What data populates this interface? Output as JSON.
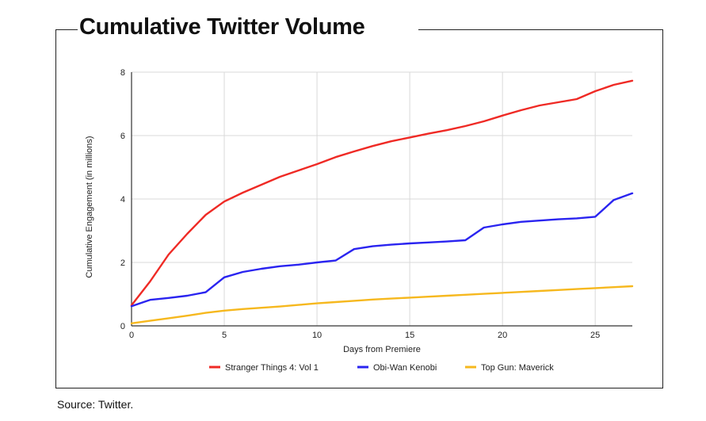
{
  "title": "Cumulative Twitter Volume",
  "source": "Source: Twitter.",
  "chart_data": {
    "type": "line",
    "xlabel": "Days from Premiere",
    "ylabel": "Cumulative Engagement (in millions)",
    "xlim": [
      0,
      27
    ],
    "ylim": [
      0,
      8
    ],
    "xticks": [
      0,
      5,
      10,
      15,
      20,
      25
    ],
    "yticks": [
      0,
      2,
      4,
      6,
      8
    ],
    "grid": true,
    "legend_position": "bottom",
    "x": [
      0,
      1,
      2,
      3,
      4,
      5,
      6,
      7,
      8,
      9,
      10,
      11,
      12,
      13,
      14,
      15,
      16,
      17,
      18,
      19,
      20,
      21,
      22,
      23,
      24,
      25,
      26,
      27
    ],
    "series": [
      {
        "name": "Stranger Things 4: Vol 1",
        "color": "#ef2a25",
        "values": [
          0.65,
          1.4,
          2.25,
          2.9,
          3.5,
          3.92,
          4.2,
          4.45,
          4.7,
          4.9,
          5.1,
          5.32,
          5.5,
          5.67,
          5.82,
          5.94,
          6.06,
          6.17,
          6.3,
          6.45,
          6.63,
          6.8,
          6.95,
          7.05,
          7.15,
          7.4,
          7.6,
          7.73
        ]
      },
      {
        "name": "Obi-Wan Kenobi",
        "color": "#2a24f0",
        "values": [
          0.62,
          0.82,
          0.88,
          0.95,
          1.06,
          1.53,
          1.7,
          1.8,
          1.88,
          1.93,
          2.0,
          2.06,
          2.42,
          2.51,
          2.56,
          2.6,
          2.63,
          2.66,
          2.7,
          3.1,
          3.2,
          3.28,
          3.32,
          3.36,
          3.39,
          3.44,
          3.97,
          4.18
        ]
      },
      {
        "name": "Top Gun: Maverick",
        "color": "#f6b81e",
        "values": [
          0.08,
          0.16,
          0.24,
          0.32,
          0.41,
          0.48,
          0.53,
          0.57,
          0.61,
          0.66,
          0.71,
          0.75,
          0.79,
          0.83,
          0.86,
          0.89,
          0.92,
          0.95,
          0.98,
          1.01,
          1.04,
          1.07,
          1.1,
          1.13,
          1.16,
          1.19,
          1.22,
          1.25
        ]
      }
    ]
  }
}
